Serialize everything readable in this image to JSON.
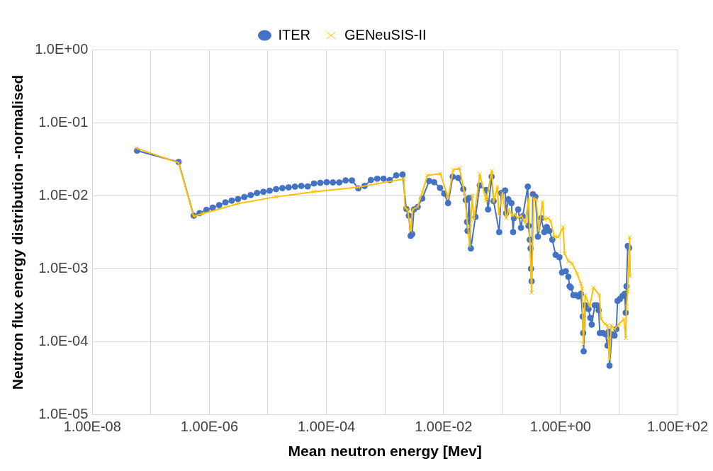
{
  "chart_data": {
    "type": "line",
    "xlabel": "Mean neutron energy [Mev]",
    "ylabel": "Neutron flux energy distribution -normalised",
    "log": "xy",
    "grid": true,
    "legend": "top",
    "line_style": "solid",
    "xlim": [
      1e-08,
      100
    ],
    "ylim": [
      1e-05,
      1
    ],
    "xticks": [
      {
        "value": 1e-08,
        "label": "1.00E-08"
      },
      {
        "value": 1e-07,
        "label": null
      },
      {
        "value": 1e-06,
        "label": "1.00E-06"
      },
      {
        "value": 1e-05,
        "label": null
      },
      {
        "value": 0.0001,
        "label": "1.00E-04"
      },
      {
        "value": 0.001,
        "label": null
      },
      {
        "value": 0.01,
        "label": "1.00E-02"
      },
      {
        "value": 0.1,
        "label": null
      },
      {
        "value": 1,
        "label": "1.00E+00"
      },
      {
        "value": 10,
        "label": null
      },
      {
        "value": 100,
        "label": "1.00E+02"
      }
    ],
    "yticks": [
      {
        "value": 1e-05,
        "label": "1.0E-05"
      },
      {
        "value": 0.0001,
        "label": "1.0E-04"
      },
      {
        "value": 0.001,
        "label": "1.0E-03"
      },
      {
        "value": 0.01,
        "label": "1.0E-02"
      },
      {
        "value": 0.1,
        "label": "1.0E-01"
      },
      {
        "value": 1,
        "label": "1.0E+00"
      }
    ],
    "series": [
      {
        "name": "ITER",
        "color": "#4472c4",
        "marker": "circle",
        "x": [
          5.8e-08,
          2.98e-07,
          5.4e-07,
          6.8e-07,
          8.9e-07,
          1.14e-06,
          1.47e-06,
          1.88e-06,
          2.41e-06,
          3.09e-06,
          3.96e-06,
          5.08e-06,
          6.52e-06,
          8.36e-06,
          1.07e-05,
          1.38e-05,
          1.77e-05,
          2.26e-05,
          2.9e-05,
          3.72e-05,
          4.78e-05,
          6.12e-05,
          7.85e-05,
          0.000101,
          0.000129,
          0.000166,
          0.000213,
          0.000273,
          0.00035,
          0.000449,
          0.000575,
          0.000738,
          0.000946,
          0.00121,
          0.00156,
          0.002,
          0.00232,
          0.00256,
          0.00275,
          0.00292,
          0.00313,
          0.00363,
          0.00435,
          0.00569,
          0.00693,
          0.00873,
          0.0103,
          0.012,
          0.0144,
          0.0179,
          0.0218,
          0.0241,
          0.0253,
          0.0258,
          0.0274,
          0.0294,
          0.0352,
          0.0417,
          0.0535,
          0.0578,
          0.0665,
          0.0719,
          0.0895,
          0.097,
          0.113,
          0.118,
          0.128,
          0.145,
          0.155,
          0.16,
          0.189,
          0.211,
          0.226,
          0.276,
          0.284,
          0.299,
          0.308,
          0.314,
          0.321,
          0.337,
          0.372,
          0.411,
          0.468,
          0.527,
          0.582,
          0.643,
          0.724,
          0.826,
          0.957,
          1.06,
          1.23,
          1.36,
          1.43,
          1.5,
          1.66,
          1.83,
          2.02,
          2.23,
          2.39,
          2.44,
          2.49,
          2.64,
          3.01,
          3.22,
          3.42,
          3.85,
          4.18,
          4.48,
          4.7,
          5.3,
          5.86,
          6.34,
          6.67,
          6.87,
          7.59,
          8.38,
          8.99,
          9.44,
          10.4,
          11.5,
          12.5,
          13.0,
          13.4,
          14.1,
          14.9
        ],
        "values": [
          0.0414,
          0.0289,
          0.00532,
          0.00577,
          0.0064,
          0.00687,
          0.00743,
          0.00811,
          0.00857,
          0.009,
          0.00959,
          0.0102,
          0.0109,
          0.0113,
          0.0117,
          0.0123,
          0.0127,
          0.013,
          0.0133,
          0.0136,
          0.0134,
          0.0147,
          0.015,
          0.0153,
          0.0152,
          0.0152,
          0.0162,
          0.0162,
          0.0126,
          0.0136,
          0.0164,
          0.0171,
          0.0171,
          0.0164,
          0.019,
          0.0195,
          0.00659,
          0.00532,
          0.00282,
          0.00298,
          0.00649,
          0.00703,
          0.00914,
          0.0159,
          0.0153,
          0.0128,
          0.0107,
          0.00792,
          0.0182,
          0.0175,
          0.0123,
          0.00871,
          0.00437,
          0.0033,
          0.00929,
          0.0019,
          0.00512,
          0.0138,
          0.012,
          0.00649,
          0.0182,
          0.00844,
          0.00318,
          0.0109,
          0.0118,
          0.00577,
          0.00893,
          0.00792,
          0.00318,
          0.00492,
          0.00649,
          0.00364,
          0.00524,
          0.0133,
          0.00387,
          0.0025,
          0.0019,
          0.001,
          0.000675,
          0.0105,
          0.00966,
          0.00275,
          0.00492,
          0.00318,
          0.00372,
          0.0033,
          0.0025,
          0.00155,
          0.00144,
          0.000891,
          0.000927,
          0.000778,
          0.000575,
          0.000553,
          0.000436,
          0.000436,
          0.000419,
          0.000454,
          0.000222,
          0.000132,
          7.41e-05,
          0.000317,
          0.000282,
          0.000213,
          0.000172,
          0.000317,
          0.000317,
          0.000271,
          0.000132,
          0.000132,
          0.000127,
          8.89e-05,
          0.000138,
          4.71e-05,
          0.000127,
          0.000122,
          0.000149,
          0.000363,
          0.000387,
          0.000426,
          0.000454,
          0.00025,
          0.000575,
          0.00205,
          0.00193
        ]
      },
      {
        "name": "GENeuSIS-II",
        "color": "#ffc000",
        "marker": "cross",
        "x": [
          5.65e-08,
          2.98e-07,
          5.4e-07,
          7.67e-07,
          3.09e-06,
          1.38e-05,
          6.12e-05,
          0.00035,
          0.000738,
          0.0021,
          0.00221,
          0.00244,
          0.00275,
          0.00298,
          0.00363,
          0.00435,
          0.00531,
          0.00889,
          0.012,
          0.0147,
          0.0188,
          0.0229,
          0.028,
          0.0309,
          0.0331,
          0.0417,
          0.0535,
          0.0671,
          0.0719,
          0.0836,
          0.0879,
          0.102,
          0.118,
          0.131,
          0.152,
          0.168,
          0.185,
          0.215,
          0.25,
          0.284,
          0.321,
          0.347,
          0.384,
          0.424,
          0.492,
          0.527,
          0.612,
          0.676,
          0.785,
          0.912,
          1.11,
          1.17,
          1.36,
          1.58,
          1.92,
          2.23,
          2.34,
          2.46,
          2.64,
          3.16,
          3.66,
          4.61,
          4.94,
          5.74,
          6.34,
          6.87,
          7.36,
          8.38,
          9.93,
          12.1,
          13.0,
          13.4,
          14.1,
          15.2,
          15.5
        ],
        "values": [
          0.0448,
          0.0282,
          0.00524,
          0.00567,
          0.0078,
          0.00966,
          0.0113,
          0.0131,
          0.0146,
          0.0169,
          0.00676,
          0.00649,
          0.0033,
          0.00649,
          0.00703,
          0.0111,
          0.019,
          0.02,
          0.00929,
          0.0226,
          0.0237,
          0.0109,
          0.00205,
          0.01,
          0.00472,
          0.0198,
          0.00857,
          0.0219,
          0.00824,
          0.0133,
          0.00553,
          0.0109,
          0.00492,
          0.00649,
          0.00532,
          0.00553,
          0.00492,
          0.00532,
          0.0042,
          0.00893,
          0.000472,
          0.00929,
          0.00893,
          0.0033,
          0.00824,
          0.00472,
          0.00492,
          0.00454,
          0.00271,
          0.00271,
          0.00372,
          0.00162,
          0.00127,
          0.00118,
          0.000857,
          0.000624,
          0.000532,
          9.27e-05,
          0.000436,
          0.000305,
          0.000553,
          0.000436,
          0.000205,
          0.000175,
          0.000168,
          5.75e-05,
          0.000168,
          0.000149,
          0.000175,
          0.000205,
          0.000113,
          0.000305,
          0.000491,
          0.00271,
          0.000791
        ]
      }
    ]
  }
}
